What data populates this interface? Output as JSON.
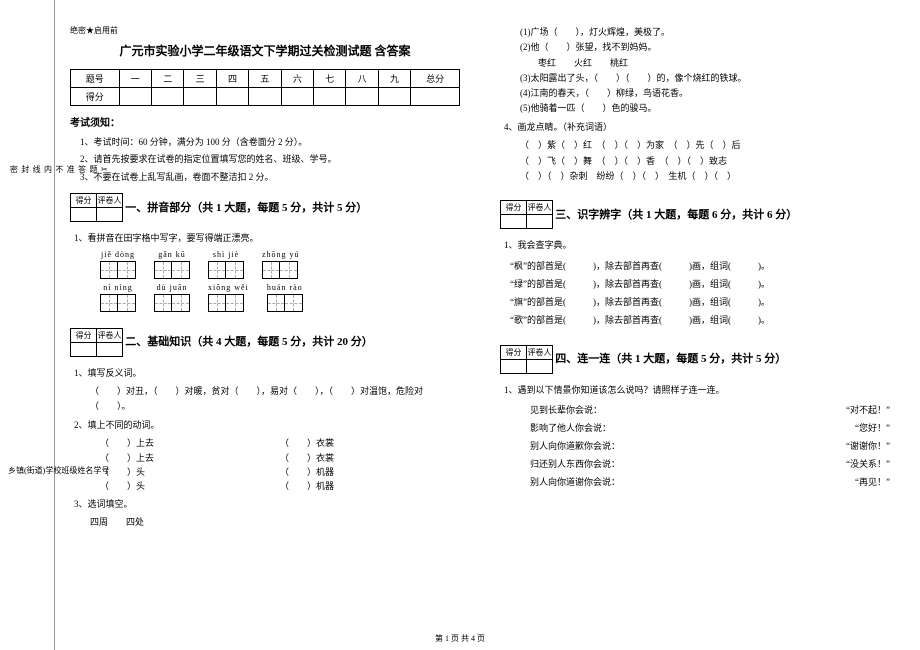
{
  "sidebar": {
    "labels_outer": [
      "学号",
      "姓名",
      "班级",
      "学校",
      "乡镇(街道)"
    ],
    "labels_inner": [
      "密",
      "封",
      "线",
      "内",
      "不",
      "准",
      "答",
      "题"
    ]
  },
  "header": {
    "secret": "绝密★启用前",
    "title": "广元市实验小学二年级语文下学期过关检测试题 含答案"
  },
  "score_table": {
    "row1": [
      "题号",
      "一",
      "二",
      "三",
      "四",
      "五",
      "六",
      "七",
      "八",
      "九",
      "总分"
    ],
    "row2_label": "得分"
  },
  "notice": {
    "heading": "考试须知：",
    "items": [
      "1、考试时间：60 分钟，满分为 100 分（含卷面分 2 分）。",
      "2、请首先按要求在试卷的指定位置填写您的姓名、班级、学号。",
      "3、不要在试卷上乱写乱画，卷面不整洁扣 2 分。"
    ]
  },
  "minibox": {
    "c1": "得分",
    "c2": "评卷人"
  },
  "sec1": {
    "title": "一、拼音部分（共 1 大题，每题 5 分，共计 5 分）",
    "q1": "1、看拼音在田字格中写字，要写得端正漂亮。",
    "pinyin_r1": [
      "jiě dòng",
      "gǎn kū",
      "shì jiè",
      "zhōng yú"
    ],
    "pinyin_r2": [
      "ní nìng",
      "dù juān",
      "xiōng wěi",
      "huán rào"
    ]
  },
  "sec2": {
    "title": "二、基础知识（共 4 大题，每题 5 分，共计 20 分）",
    "q1": "1、填写反义词。",
    "q1line": "（　　）对丑，（　　）对暖，贫对（　　），易对（　　），（　　）对温饱，危险对（　　）。",
    "q2": "2、填上不同的动词。",
    "q2rows": [
      [
        "（　　）上去",
        "（　　）衣裳"
      ],
      [
        "（　　）上去",
        "（　　）衣裳"
      ],
      [
        "（　　）头",
        "（　　）机器"
      ],
      [
        "（　　）头",
        "（　　）机器"
      ]
    ],
    "q3": "3、选词填空。",
    "q3opts": "四周　　四处"
  },
  "sec2b": {
    "lines": [
      "(1)广场（　　），灯火辉煌，美极了。",
      "(2)他（　　）张望，找不到妈妈。",
      "　　枣红　　火红　　桃红",
      "(3)太阳露出了头，（　　）（　　）的，像个烧红的铁球。",
      "(4)江南的春天，（　　）柳绿，鸟语花香。",
      "(5)他骑着一匹（　　）色的骏马。"
    ],
    "q4": "4、画龙点睛。（补充词语）",
    "q4rows": [
      "（　）紫（　）红　（　）（　）为家　（　）先（　）后",
      "（　）飞（　）舞　（　）（　）香　（　）（　）致志",
      "（　）（　）杂刺　纷纷（　）（　）　生机（　）（　）"
    ]
  },
  "sec3": {
    "title": "三、识字辨字（共 1 大题，每题 6 分，共计 6 分）",
    "q1": "1、我会查字典。",
    "rows": [
      "“枫”的部首是(　　　)，除去部首再查(　　　)画，组词(　　　)。",
      "“绿”的部首是(　　　)，除去部首再查(　　　)画，组词(　　　)。",
      "“旗”的部首是(　　　)，除去部首再查(　　　)画，组词(　　　)。",
      "“歌”的部首是(　　　)，除去部首再查(　　　)画，组词(　　　)。"
    ]
  },
  "sec4": {
    "title": "四、连一连（共 1 大题，每题 5 分，共计 5 分）",
    "q1": "1、遇到以下情景你知道该怎么说吗？请照样子连一连。",
    "pairs": [
      [
        "见到长辈你会说：",
        "“对不起！”"
      ],
      [
        "影响了他人你会说：",
        "“您好！”"
      ],
      [
        "别人向你道歉你会说：",
        "“谢谢你！”"
      ],
      [
        "归还别人东西你会说：",
        "“没关系！”"
      ],
      [
        "别人向你道谢你会说：",
        "“再见！”"
      ]
    ]
  },
  "footer": "第 1 页 共 4 页"
}
